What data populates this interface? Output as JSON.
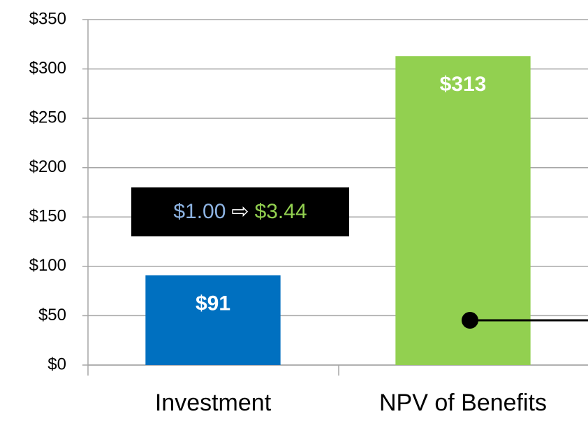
{
  "chart_data": {
    "type": "bar",
    "categories": [
      "Investment",
      "NPV of Benefits"
    ],
    "values": [
      91,
      313
    ],
    "value_labels": [
      "$91",
      "$313"
    ],
    "colors": [
      "#0070c0",
      "#92d050"
    ],
    "ylim": [
      0,
      350
    ],
    "yticks": [
      {
        "value": 0,
        "label": "$0"
      },
      {
        "value": 50,
        "label": "$50"
      },
      {
        "value": 100,
        "label": "$100"
      },
      {
        "value": 150,
        "label": "$150"
      },
      {
        "value": 200,
        "label": "$200"
      },
      {
        "value": 250,
        "label": "$250"
      },
      {
        "value": 300,
        "label": "$300"
      },
      {
        "value": 350,
        "label": "$350"
      }
    ],
    "grid": true,
    "annotation": {
      "from": "$1.00",
      "arrow": "⇨",
      "to": "$3.44"
    }
  }
}
